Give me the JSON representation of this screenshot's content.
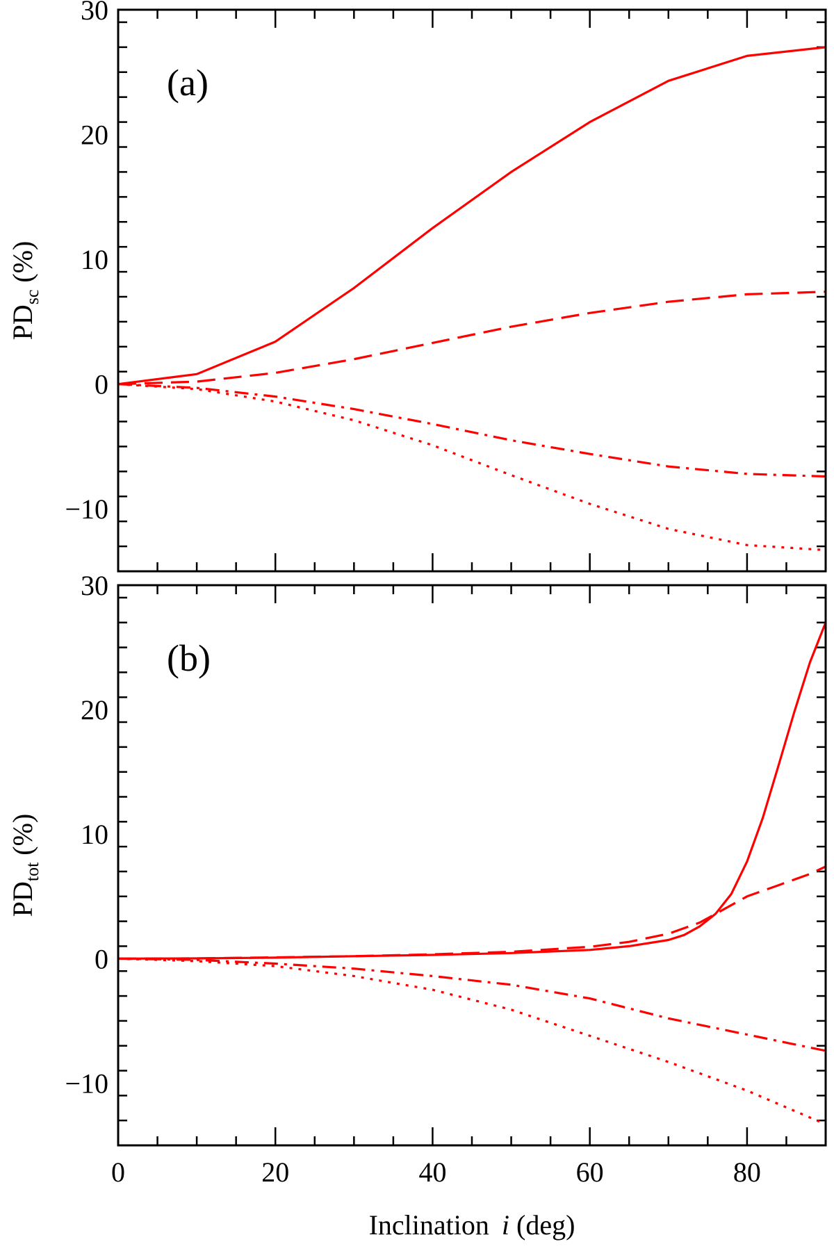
{
  "chart_data": [
    {
      "type": "line",
      "panel_label": "(a)",
      "ylabel": {
        "main": "PD",
        "sub": "sc",
        "unit": "(%)"
      },
      "xlim": [
        0,
        90
      ],
      "ylim": [
        -15,
        30
      ],
      "x_ticks": [
        0,
        20,
        40,
        60,
        80
      ],
      "y_ticks": [
        -10,
        0,
        10,
        20,
        30
      ],
      "series": [
        {
          "style": "solid",
          "color": "#ff0000",
          "x": [
            0,
            10,
            20,
            30,
            40,
            50,
            60,
            70,
            80,
            90
          ],
          "y": [
            0,
            0.8,
            3.4,
            7.7,
            12.5,
            17.0,
            21.0,
            24.3,
            26.3,
            27.0
          ]
        },
        {
          "style": "dashed",
          "color": "#ff0000",
          "x": [
            0,
            10,
            20,
            30,
            40,
            50,
            60,
            70,
            80,
            90
          ],
          "y": [
            0,
            0.2,
            0.9,
            2.0,
            3.3,
            4.6,
            5.7,
            6.6,
            7.2,
            7.4
          ]
        },
        {
          "style": "dashdot",
          "color": "#ff0000",
          "x": [
            0,
            10,
            20,
            30,
            40,
            50,
            60,
            70,
            80,
            90
          ],
          "y": [
            0,
            -0.3,
            -1.0,
            -2.0,
            -3.2,
            -4.5,
            -5.6,
            -6.6,
            -7.2,
            -7.4
          ]
        },
        {
          "style": "dotted",
          "color": "#ff0000",
          "x": [
            0,
            10,
            20,
            30,
            40,
            50,
            60,
            70,
            80,
            90
          ],
          "y": [
            0,
            -0.4,
            -1.4,
            -2.9,
            -4.9,
            -7.3,
            -9.6,
            -11.6,
            -12.9,
            -13.3
          ]
        }
      ]
    },
    {
      "type": "line",
      "panel_label": "(b)",
      "ylabel": {
        "main": "PD",
        "sub": "tot",
        "unit": "(%)"
      },
      "xlabel": {
        "main": "Inclination",
        "var": "i",
        "unit": "(deg)"
      },
      "xlim": [
        0,
        90
      ],
      "ylim": [
        -15,
        30
      ],
      "x_ticks": [
        0,
        20,
        40,
        60,
        80
      ],
      "y_ticks": [
        -10,
        0,
        10,
        20,
        30
      ],
      "series": [
        {
          "style": "solid",
          "color": "#ff0000",
          "x": [
            0,
            10,
            20,
            30,
            40,
            50,
            60,
            65,
            70,
            72,
            74,
            76,
            78,
            80,
            82,
            84,
            86,
            88,
            90
          ],
          "y": [
            0,
            0.02,
            0.08,
            0.2,
            0.3,
            0.45,
            0.7,
            1.0,
            1.5,
            1.9,
            2.6,
            3.6,
            5.2,
            7.8,
            11.3,
            15.5,
            19.8,
            23.8,
            27.0
          ]
        },
        {
          "style": "dashed",
          "color": "#ff0000",
          "x": [
            0,
            10,
            20,
            30,
            40,
            50,
            60,
            65,
            70,
            74,
            76,
            78,
            80,
            84,
            88,
            90
          ],
          "y": [
            0,
            0.02,
            0.1,
            0.2,
            0.35,
            0.55,
            0.95,
            1.35,
            2.0,
            2.9,
            3.6,
            4.3,
            5.0,
            5.9,
            6.8,
            7.4
          ]
        },
        {
          "style": "dashdot",
          "color": "#ff0000",
          "x": [
            0,
            10,
            20,
            30,
            40,
            50,
            60,
            70,
            80,
            90
          ],
          "y": [
            0,
            -0.1,
            -0.4,
            -0.8,
            -1.4,
            -2.1,
            -3.2,
            -4.8,
            -6.1,
            -7.4
          ]
        },
        {
          "style": "dotted",
          "color": "#ff0000",
          "x": [
            0,
            10,
            20,
            30,
            40,
            50,
            60,
            70,
            80,
            90
          ],
          "y": [
            0,
            -0.2,
            -0.6,
            -1.4,
            -2.5,
            -4.1,
            -6.2,
            -8.3,
            -10.6,
            -13.3
          ]
        }
      ]
    }
  ]
}
